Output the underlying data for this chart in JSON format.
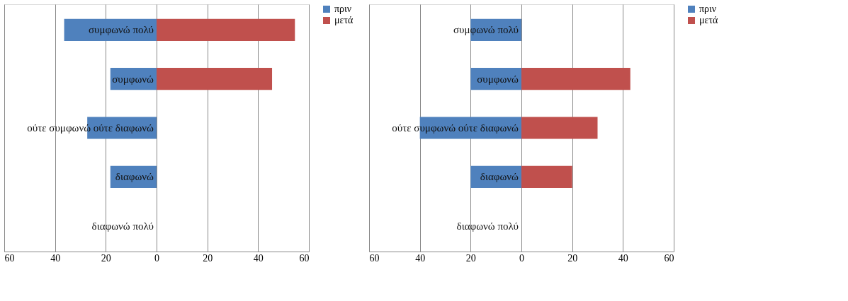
{
  "chart_data": [
    {
      "type": "bar",
      "orientation": "horizontal",
      "categories": [
        "συμφωνώ πολύ",
        "συμφωνώ",
        "ούτε συμφωνώ ούτε διαφωνώ",
        "διαφωνώ",
        "διαφωνώ πολύ"
      ],
      "series": [
        {
          "name": "πριν",
          "color": "#4f81bd",
          "values": [
            -36.4,
            -18.2,
            -27.3,
            -18.2,
            0
          ]
        },
        {
          "name": "μετά",
          "color": "#c0504d",
          "values": [
            54.5,
            45.5,
            0,
            0,
            0
          ]
        }
      ],
      "xlim": [
        -60,
        60
      ],
      "xticks": [
        {
          "value": -60,
          "label": "60"
        },
        {
          "value": -40,
          "label": "40"
        },
        {
          "value": -20,
          "label": "20"
        },
        0,
        20,
        40,
        60
      ],
      "grid": "x",
      "legend": "right",
      "stacked": true
    },
    {
      "type": "bar",
      "orientation": "horizontal",
      "categories": [
        "συμφωνώ πολύ",
        "συμφωνώ",
        "ούτε συμφωνώ ούτε διαφωνώ",
        "διαφωνώ",
        "διαφωνώ πολύ"
      ],
      "series": [
        {
          "name": "πριν",
          "color": "#4f81bd",
          "values": [
            -20,
            -20,
            -40,
            -20,
            0
          ]
        },
        {
          "name": "μετά",
          "color": "#c0504d",
          "values": [
            0,
            42.9,
            30,
            20,
            0
          ]
        }
      ],
      "xlim": [
        -60,
        60
      ],
      "xticks": [
        {
          "value": -60,
          "label": "60"
        },
        {
          "value": -40,
          "label": "40"
        },
        {
          "value": -20,
          "label": "20"
        },
        0,
        20,
        40,
        60
      ],
      "grid": "x",
      "legend": "right",
      "stacked": true
    }
  ]
}
